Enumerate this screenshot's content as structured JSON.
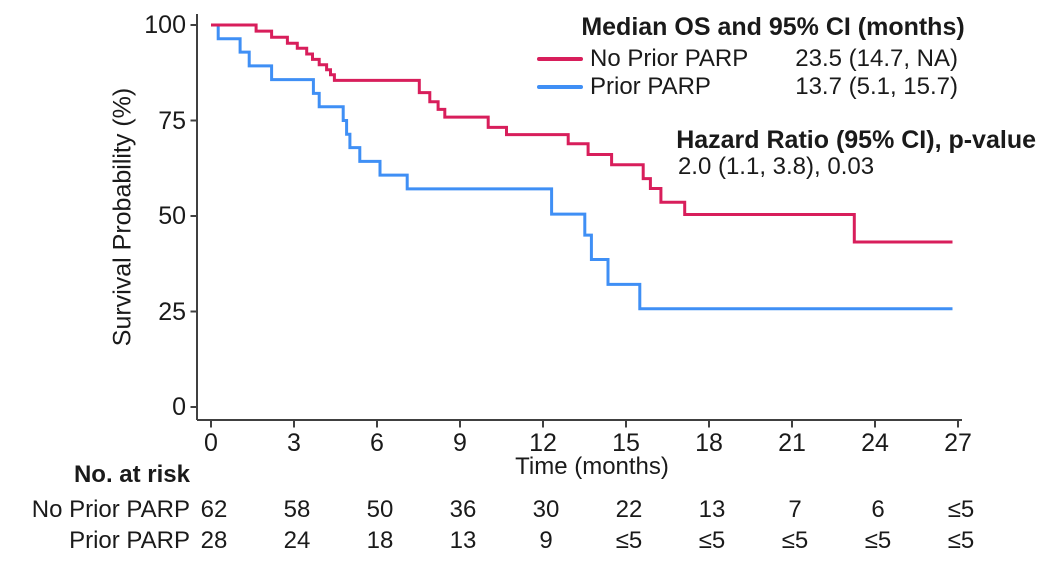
{
  "figure": {
    "y_axis_label": "Survival Probability (%)",
    "x_axis_label": "Time (months)"
  },
  "legend": {
    "title": "Median OS and 95% CI (months)",
    "entries": [
      {
        "label": "No Prior PARP",
        "value": "23.5 (14.7, NA)",
        "color": "#D81E5B"
      },
      {
        "label": "Prior PARP",
        "value": "13.7 (5.1, 15.7)",
        "color": "#3F8FF5"
      }
    ],
    "hazard_title": "Hazard Ratio (95% CI), p-value",
    "hazard_value": "2.0 (1.1, 3.8), 0.03"
  },
  "risk_table": {
    "header": "No. at risk",
    "rows": [
      {
        "label": "No Prior PARP",
        "counts": [
          "62",
          "58",
          "50",
          "36",
          "30",
          "22",
          "13",
          "7",
          "6",
          "≤5"
        ]
      },
      {
        "label": "Prior PARP",
        "counts": [
          "28",
          "24",
          "18",
          "13",
          "9",
          "≤5",
          "≤5",
          "≤5",
          "≤5",
          "≤5"
        ]
      }
    ]
  },
  "chart_data": {
    "type": "line",
    "subtype": "kaplan-meier-step",
    "title": "Median OS and 95% CI (months)",
    "xlabel": "Time (months)",
    "ylabel": "Survival Probability (%)",
    "xlim": [
      0,
      27
    ],
    "ylim": [
      0,
      100
    ],
    "x_ticks": [
      0,
      3,
      6,
      9,
      12,
      15,
      18,
      21,
      24,
      27
    ],
    "y_ticks": [
      100,
      75,
      50,
      25,
      0
    ],
    "grid": false,
    "legend_position": "top-right",
    "curve_end_x": 26.8,
    "series": [
      {
        "name": "No Prior PARP",
        "color": "#D81E5B",
        "median_os_months": 23.5,
        "median_ci": "14.7, NA",
        "steps": [
          [
            0,
            100
          ],
          [
            1.63,
            98.4
          ],
          [
            2.19,
            96.8
          ],
          [
            2.76,
            95.2
          ],
          [
            3.12,
            93.9
          ],
          [
            3.46,
            92.4
          ],
          [
            3.67,
            91.0
          ],
          [
            3.91,
            89.6
          ],
          [
            4.18,
            88.3
          ],
          [
            4.32,
            87.0
          ],
          [
            4.46,
            85.5
          ],
          [
            7.53,
            82.3
          ],
          [
            7.91,
            79.9
          ],
          [
            8.21,
            77.9
          ],
          [
            8.45,
            75.9
          ],
          [
            10.02,
            73.2
          ],
          [
            10.68,
            71.3
          ],
          [
            12.91,
            68.9
          ],
          [
            13.63,
            66.1
          ],
          [
            14.48,
            63.4
          ],
          [
            15.62,
            59.8
          ],
          [
            15.88,
            57.2
          ],
          [
            16.26,
            53.6
          ],
          [
            17.12,
            50.4
          ],
          [
            23.25,
            43.2
          ]
        ]
      },
      {
        "name": "Prior PARP",
        "color": "#3F8FF5",
        "median_os_months": 13.7,
        "median_ci": "5.1, 15.7",
        "steps": [
          [
            0,
            100
          ],
          [
            0.26,
            96.4
          ],
          [
            1.05,
            92.9
          ],
          [
            1.38,
            89.3
          ],
          [
            2.19,
            85.7
          ],
          [
            3.7,
            82.1
          ],
          [
            3.91,
            78.6
          ],
          [
            4.78,
            75.0
          ],
          [
            4.9,
            71.4
          ],
          [
            5.02,
            67.9
          ],
          [
            5.38,
            64.3
          ],
          [
            6.11,
            60.7
          ],
          [
            7.09,
            57.1
          ],
          [
            12.31,
            50.5
          ],
          [
            13.51,
            45.0
          ],
          [
            13.75,
            38.6
          ],
          [
            14.35,
            32.1
          ],
          [
            15.5,
            25.7
          ]
        ]
      }
    ],
    "hazard_ratio": {
      "value": 2.0,
      "ci": "1.1, 3.8",
      "p_value": 0.03
    }
  }
}
